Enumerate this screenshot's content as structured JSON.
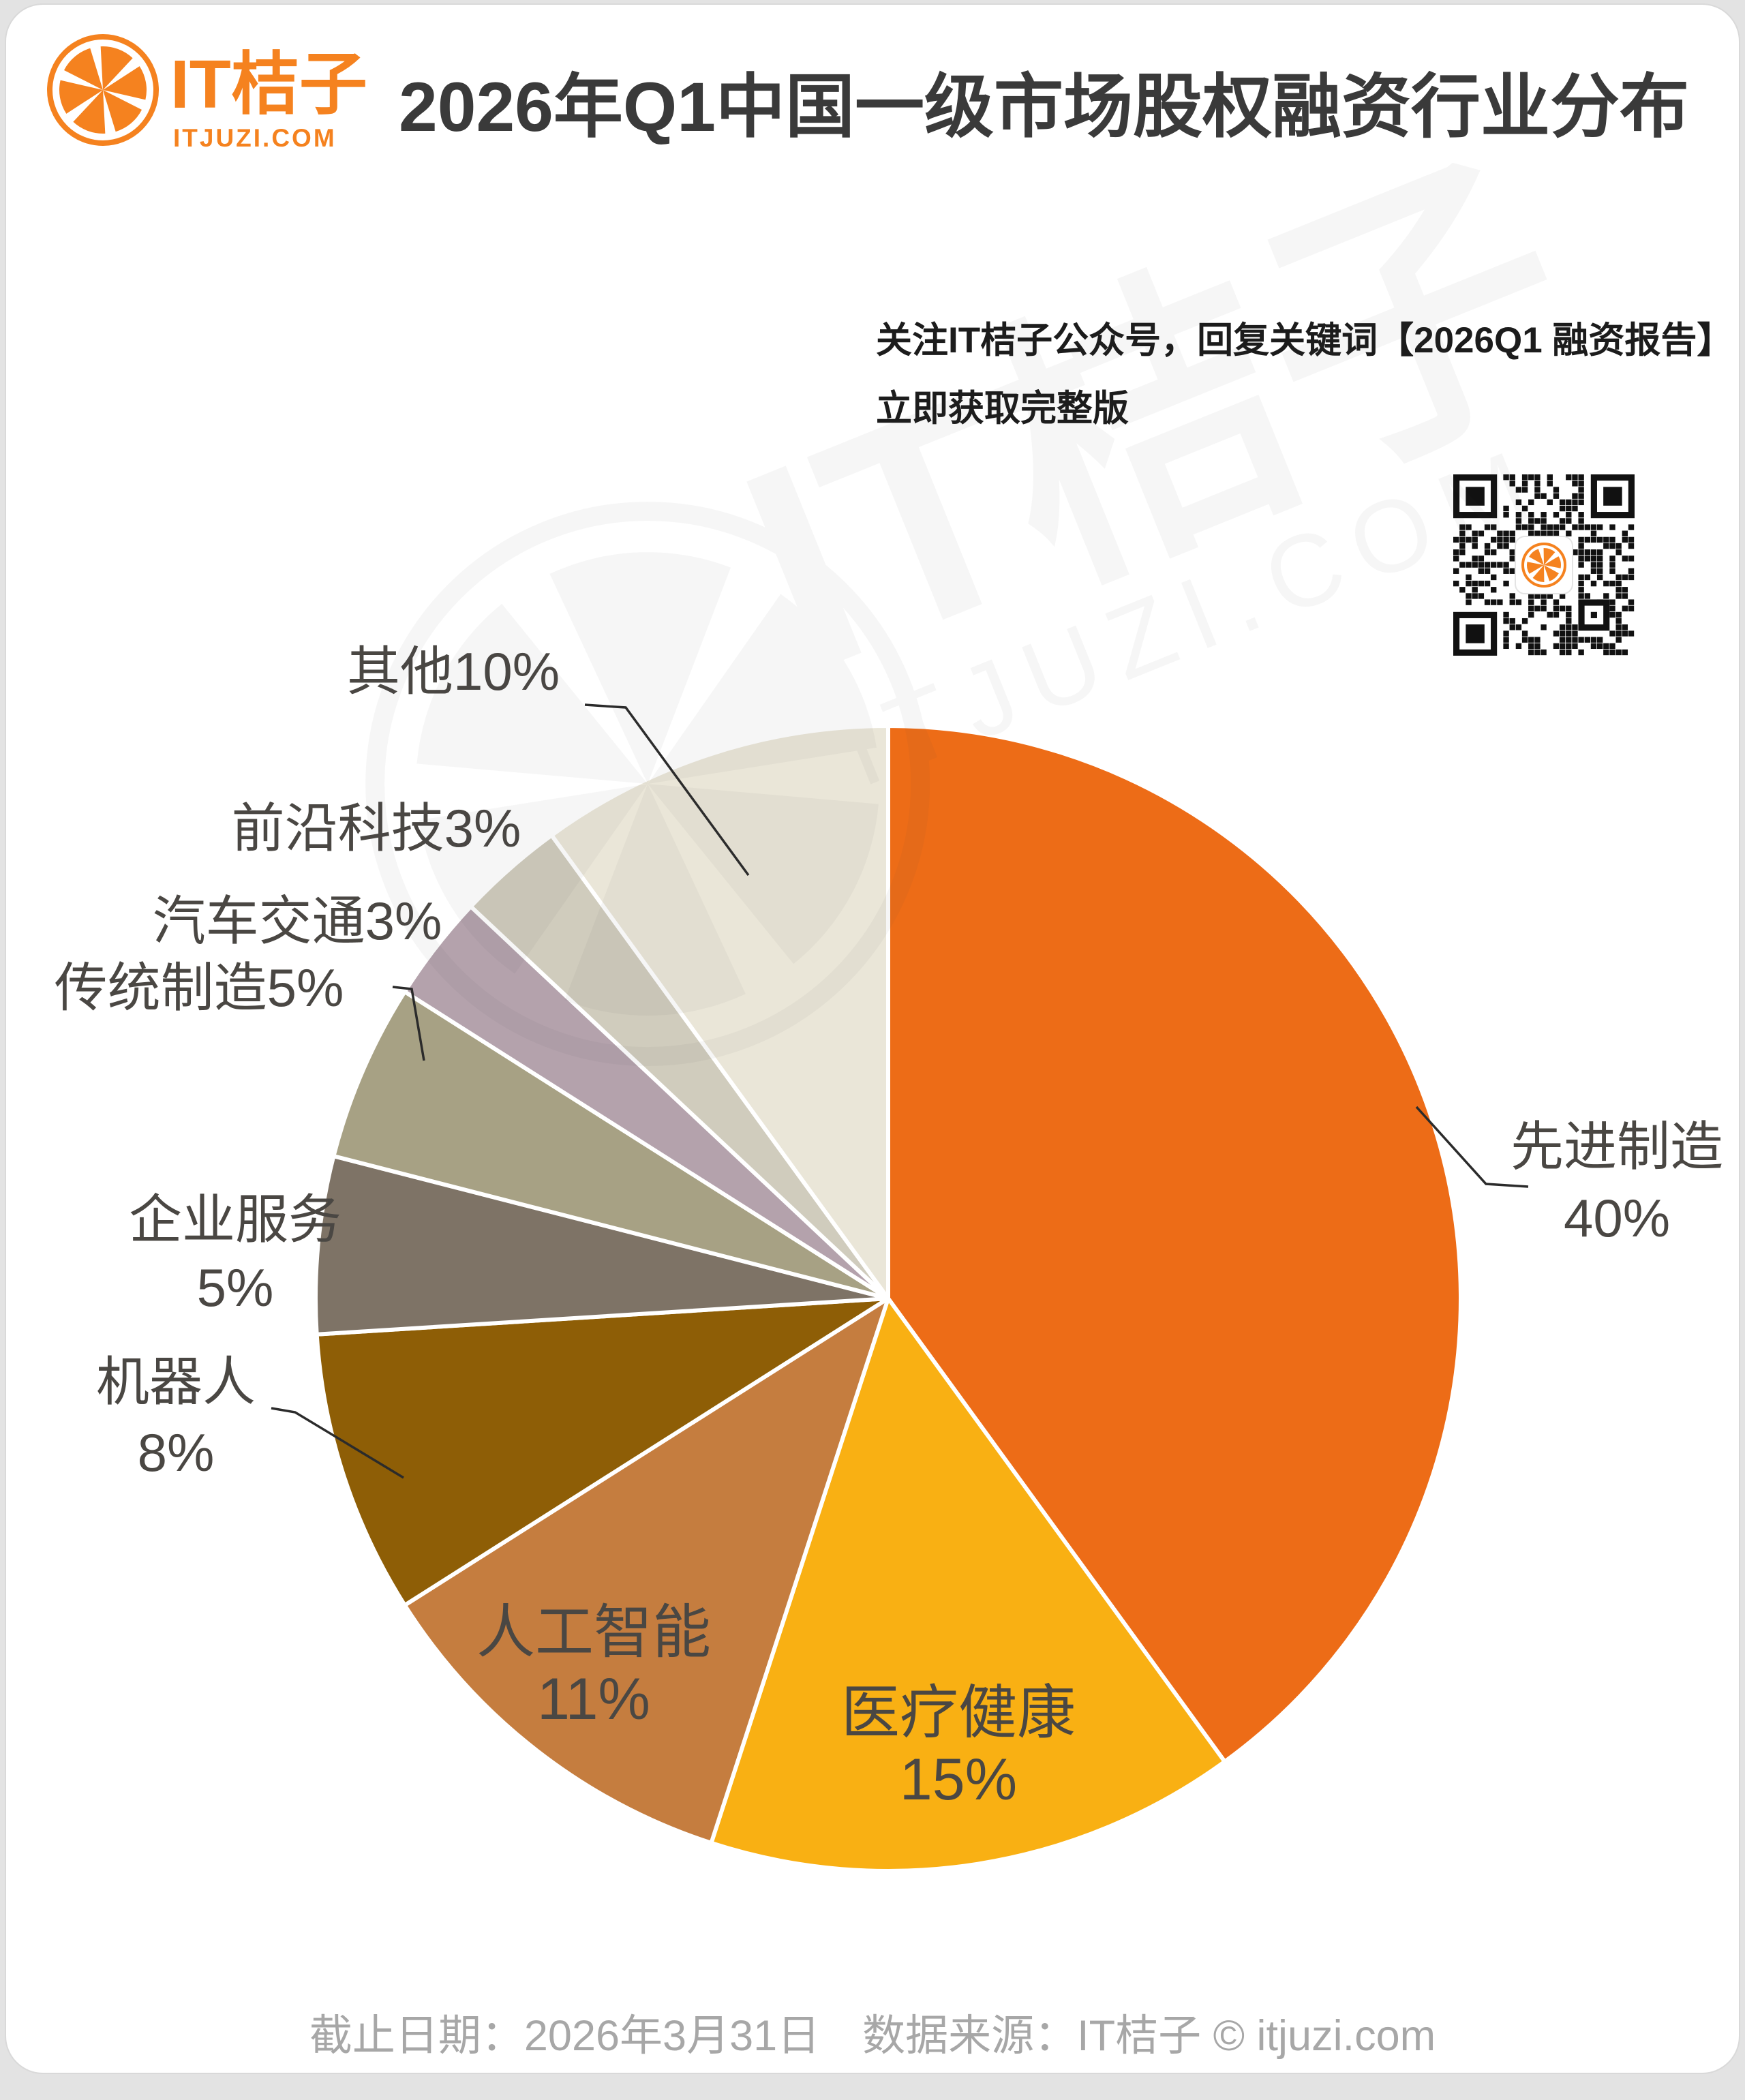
{
  "header": {
    "logo_text": "IT桔子",
    "logo_domain": "ITJUZI.COM",
    "title": "2026年Q1中国一级市场股权融资行业分布"
  },
  "promo": {
    "line1": "关注IT桔子公众号，回复关键词【2026Q1 融资报告】",
    "line2": "立即获取完整版"
  },
  "watermark": {
    "text": "IT桔子",
    "subtext": "ITJUZI.COM"
  },
  "footer": {
    "cutoff": "截止日期：2026年3月31日",
    "source": "数据来源：IT桔子 © itjuzi.com"
  },
  "chart_data": {
    "type": "pie",
    "title": "2026年Q1中国一级市场股权融资行业分布",
    "start_angle_deg": 0,
    "direction": "clockwise",
    "legend_position": "none",
    "segments": [
      {
        "label": "先进制造",
        "value": 40,
        "pct": "40%",
        "color": "#ED6C17"
      },
      {
        "label": "医疗健康",
        "value": 15,
        "pct": "15%",
        "color": "#F9B013"
      },
      {
        "label": "人工智能",
        "value": 11,
        "pct": "11%",
        "color": "#C57D3F"
      },
      {
        "label": "机器人",
        "value": 8,
        "pct": "8%",
        "color": "#8E5E06"
      },
      {
        "label": "企业服务",
        "value": 5,
        "pct": "5%",
        "color": "#7E7366"
      },
      {
        "label": "传统制造",
        "value": 5,
        "pct": "5%",
        "color": "#A7A184"
      },
      {
        "label": "汽车交通",
        "value": 3,
        "pct": "3%",
        "color": "#B4A2AC"
      },
      {
        "label": "前沿科技",
        "value": 3,
        "pct": "3%",
        "color": "#D0CCBD"
      },
      {
        "label": "其他",
        "value": 10,
        "pct": "10%",
        "color": "#EAE6D8"
      }
    ],
    "accent_color": "#F5821F",
    "label_color": "#4A4743",
    "leader_line_color": "#2B2B2B"
  }
}
